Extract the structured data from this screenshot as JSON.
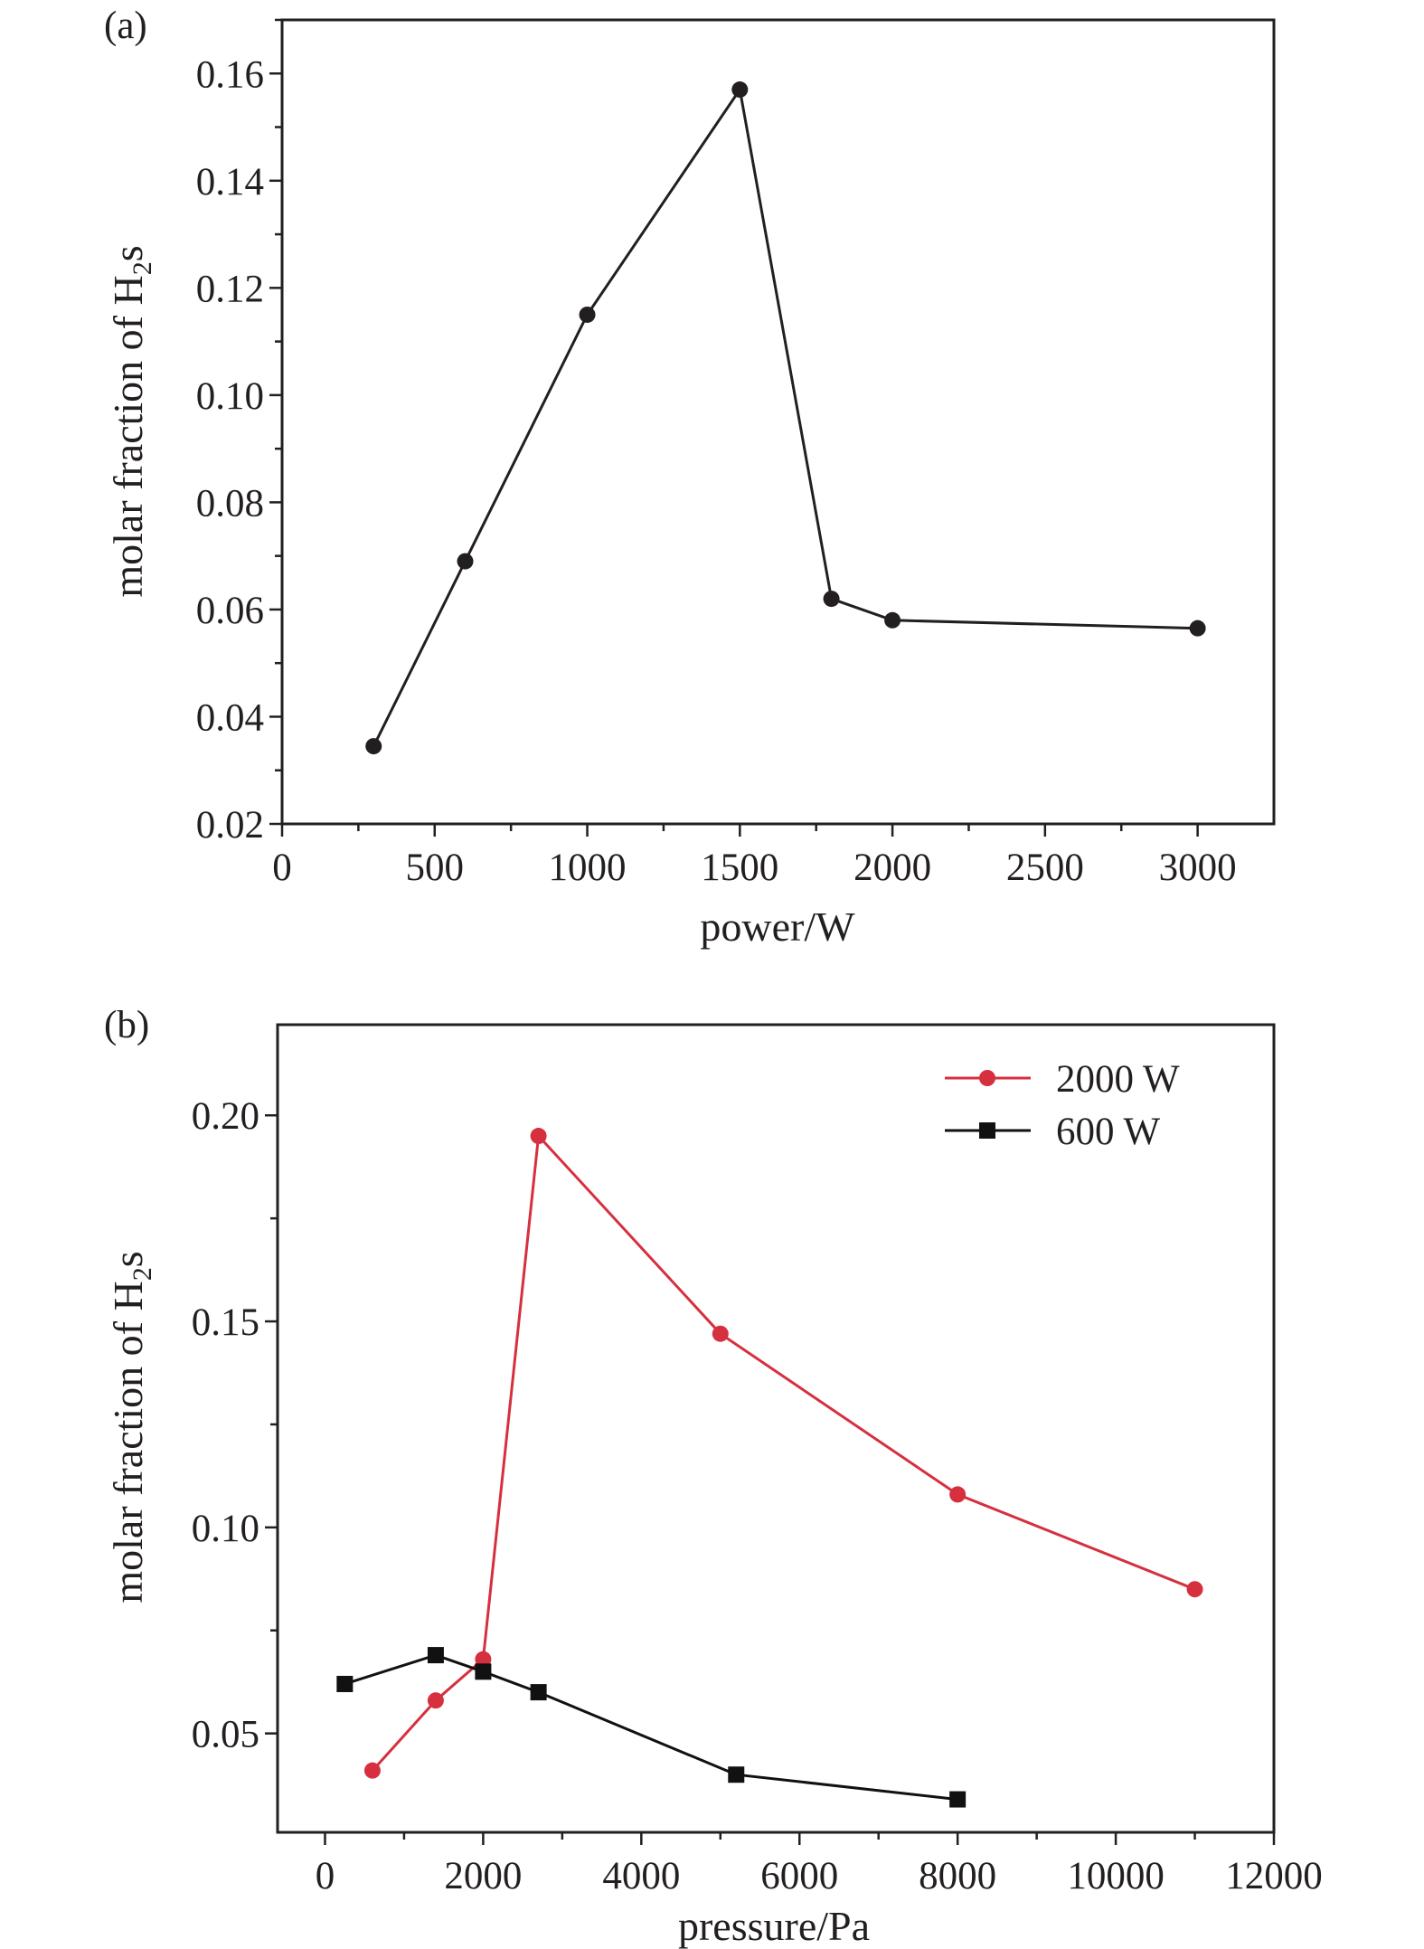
{
  "chart_data": [
    {
      "type": "line",
      "panel_label": "(a)",
      "xlabel": "power/W",
      "ylabel_main": "molar fraction of H",
      "ylabel_sub": "2",
      "ylabel_tail": "s",
      "xlim": [
        0,
        3250
      ],
      "ylim": [
        0.02,
        0.17
      ],
      "x_ticks": [
        0,
        500,
        1000,
        1500,
        2000,
        2500,
        3000
      ],
      "x_tick_labels": [
        "0",
        "500",
        "1000",
        "1500",
        "2000",
        "2500",
        "3000"
      ],
      "y_ticks": [
        0.02,
        0.04,
        0.06,
        0.08,
        0.1,
        0.12,
        0.14,
        0.16
      ],
      "y_tick_labels": [
        "0.02",
        "0.04",
        "0.06",
        "0.08",
        "0.10",
        "0.12",
        "0.14",
        "0.16"
      ],
      "grid": false,
      "series": [
        {
          "color": "#231f20",
          "marker": "circle",
          "x": [
            300,
            600,
            1000,
            1500,
            1800,
            2000,
            3000
          ],
          "y": [
            0.0345,
            0.069,
            0.115,
            0.157,
            0.062,
            0.058,
            0.0565
          ]
        }
      ]
    },
    {
      "type": "line",
      "panel_label": "(b)",
      "xlabel": "pressure/Pa",
      "ylabel_main": "molar fraction of H",
      "ylabel_sub": "2",
      "ylabel_tail": "s",
      "xlim": [
        -600,
        12000
      ],
      "ylim": [
        0.026,
        0.222
      ],
      "x_ticks": [
        0,
        2000,
        4000,
        6000,
        8000,
        10000,
        12000
      ],
      "x_tick_labels": [
        "0",
        "2000",
        "4000",
        "6000",
        "8000",
        "10000",
        "12000"
      ],
      "y_ticks": [
        0.05,
        0.1,
        0.15,
        0.2
      ],
      "y_tick_labels": [
        "0.05",
        "0.10",
        "0.15",
        "0.20"
      ],
      "grid": false,
      "legend_position": "top-right",
      "series": [
        {
          "name": "2000 W",
          "color": "#d6303f",
          "marker": "circle",
          "x": [
            600,
            1400,
            2000,
            2700,
            5000,
            8000,
            11000
          ],
          "y": [
            0.041,
            0.058,
            0.068,
            0.195,
            0.147,
            0.108,
            0.085
          ]
        },
        {
          "name": "600 W",
          "color": "#111111",
          "marker": "square",
          "x": [
            250,
            1400,
            2000,
            2700,
            5200,
            8000
          ],
          "y": [
            0.062,
            0.069,
            0.065,
            0.06,
            0.04,
            0.034
          ]
        }
      ]
    }
  ]
}
